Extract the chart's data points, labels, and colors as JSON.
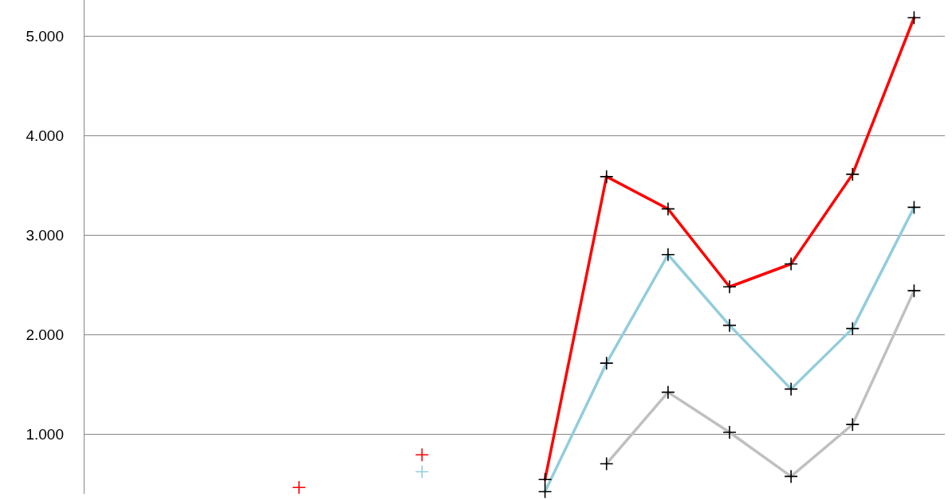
{
  "chart_data": {
    "type": "line",
    "categories": [
      null,
      null,
      null,
      null,
      null,
      null,
      null,
      null,
      null,
      null,
      null,
      null,
      null,
      null
    ],
    "series": [
      {
        "color": "#ff0000",
        "values": [
          null,
          null,
          null,
          462,
          null,
          790,
          null,
          542,
          3585,
          3261,
          2478,
          2708,
          3609,
          5182
        ]
      },
      {
        "color": "#92cddc",
        "values": [
          null,
          null,
          null,
          null,
          null,
          620,
          null,
          420,
          1711,
          2802,
          2091,
          1451,
          2059,
          3277
        ]
      },
      {
        "color": "#c0c0c0",
        "values": [
          null,
          null,
          null,
          null,
          null,
          null,
          null,
          null,
          700,
          1419,
          1016,
          573,
          1095,
          2439
        ]
      }
    ],
    "ylim": [
      400,
      5360
    ],
    "yticks": [
      {
        "value": 1000,
        "label": "1.000"
      },
      {
        "value": 2000,
        "label": "2.000"
      },
      {
        "value": 3000,
        "label": "3.000"
      },
      {
        "value": 4000,
        "label": "4.000"
      },
      {
        "value": 5000,
        "label": "5.000"
      }
    ],
    "grid": "y",
    "marker": "cross",
    "line_style": "solid"
  }
}
